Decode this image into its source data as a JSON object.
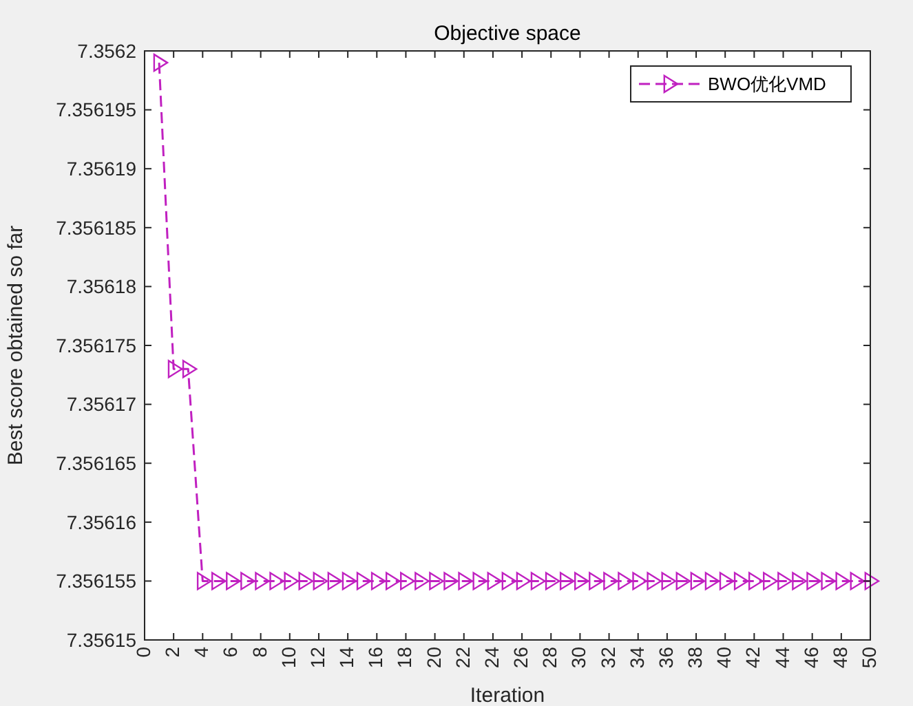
{
  "chart_data": {
    "type": "line",
    "title": "Objective space",
    "xlabel": "Iteration",
    "ylabel": "Best score obtained so far",
    "x": [
      1,
      2,
      3,
      4,
      5,
      6,
      7,
      8,
      9,
      10,
      11,
      12,
      13,
      14,
      15,
      16,
      17,
      18,
      19,
      20,
      21,
      22,
      23,
      24,
      25,
      26,
      27,
      28,
      29,
      30,
      31,
      32,
      33,
      34,
      35,
      36,
      37,
      38,
      39,
      40,
      41,
      42,
      43,
      44,
      45,
      46,
      47,
      48,
      49,
      50
    ],
    "series": [
      {
        "name": "BWO优化VMD",
        "color": "#c020c0",
        "values": [
          7.356199,
          7.356173,
          7.356173,
          7.356155,
          7.356155,
          7.356155,
          7.356155,
          7.356155,
          7.356155,
          7.356155,
          7.356155,
          7.356155,
          7.356155,
          7.356155,
          7.356155,
          7.356155,
          7.356155,
          7.356155,
          7.356155,
          7.356155,
          7.356155,
          7.356155,
          7.356155,
          7.356155,
          7.356155,
          7.356155,
          7.356155,
          7.356155,
          7.356155,
          7.356155,
          7.356155,
          7.356155,
          7.356155,
          7.356155,
          7.356155,
          7.356155,
          7.356155,
          7.356155,
          7.356155,
          7.356155,
          7.356155,
          7.356155,
          7.356155,
          7.356155,
          7.356155,
          7.356155,
          7.356155,
          7.356155,
          7.356155,
          7.356155
        ]
      }
    ],
    "xlim": [
      0,
      50
    ],
    "xticks": [
      0,
      2,
      4,
      6,
      8,
      10,
      12,
      14,
      16,
      18,
      20,
      22,
      24,
      26,
      28,
      30,
      32,
      34,
      36,
      38,
      40,
      42,
      44,
      46,
      48,
      50
    ],
    "ylim": [
      7.35615,
      7.3562
    ],
    "yticks": [
      7.35615,
      7.356155,
      7.35616,
      7.356165,
      7.35617,
      7.356175,
      7.35618,
      7.356185,
      7.35619,
      7.356195,
      7.3562
    ],
    "marker": "triangle",
    "line_style": "dashed",
    "legend": "top right",
    "grid": false
  }
}
